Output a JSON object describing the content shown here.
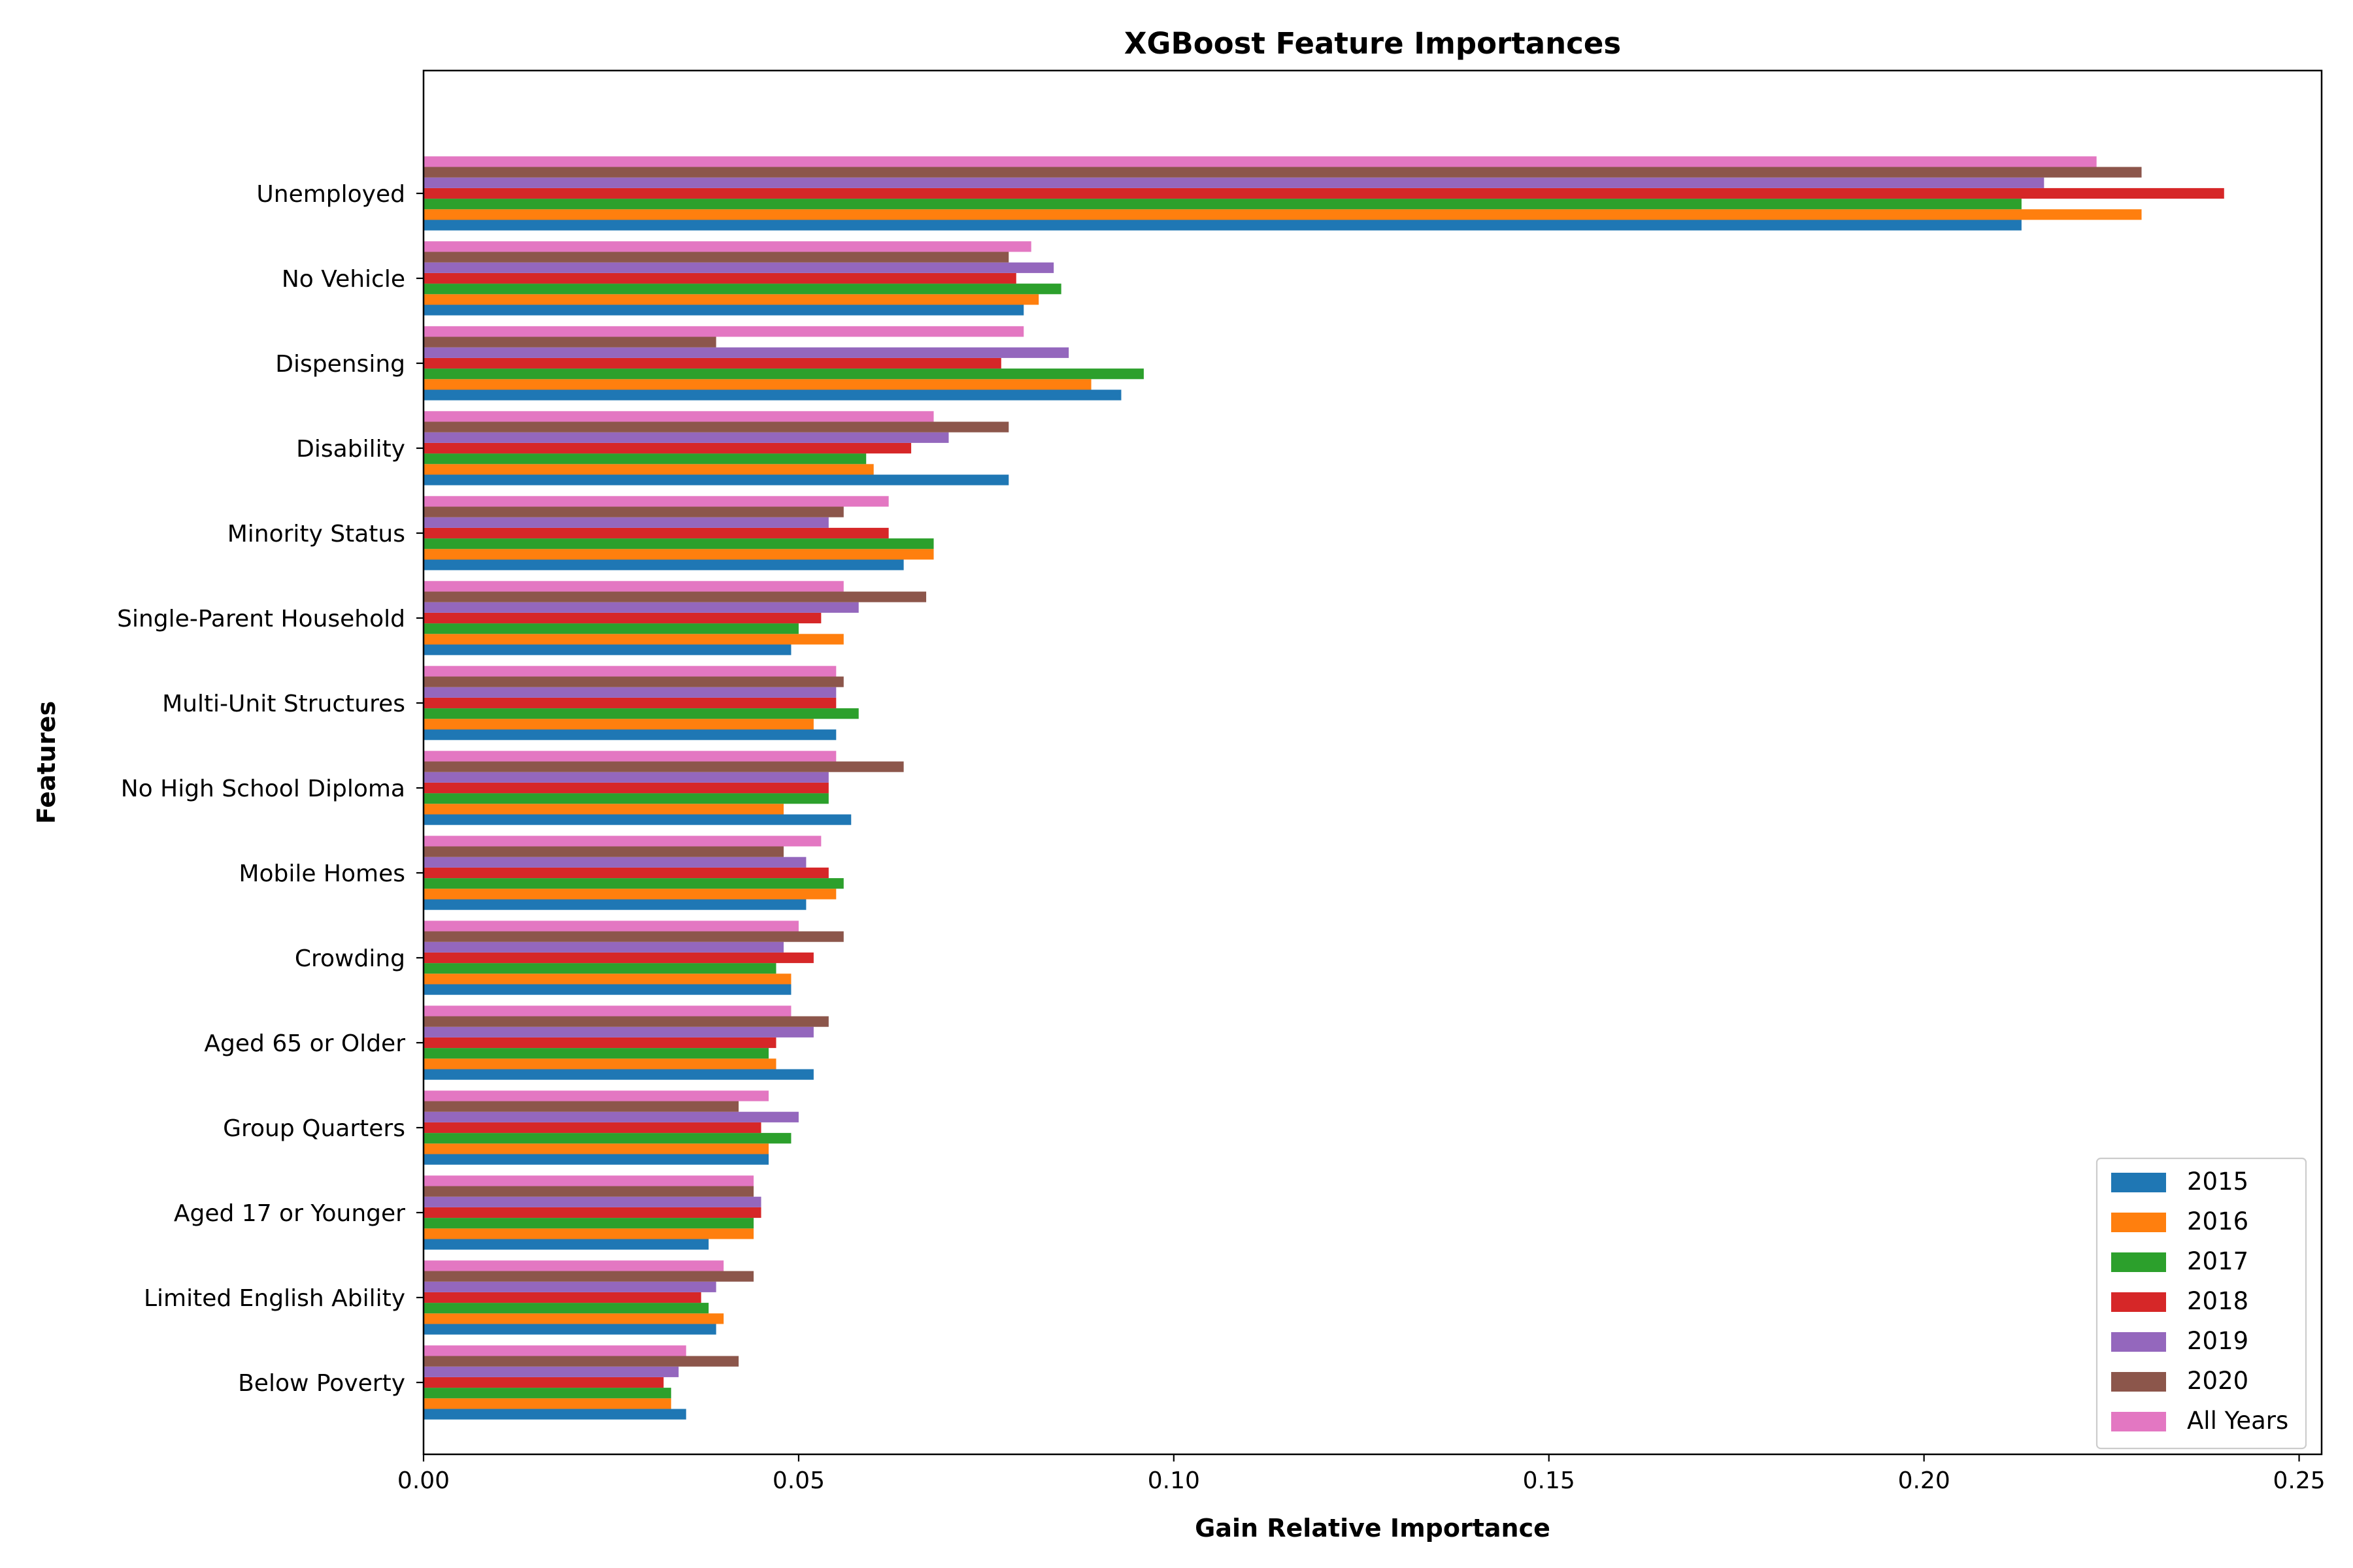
{
  "chart_data": {
    "type": "bar",
    "orientation": "horizontal",
    "title": "XGBoost Feature Importances",
    "xlabel": "Gain Relative Importance",
    "ylabel": "Features",
    "xlim": [
      0,
      0.253
    ],
    "xticks": [
      "0.00",
      "0.05",
      "0.10",
      "0.15",
      "0.20",
      "0.25"
    ],
    "grid": false,
    "legend_position": "lower-right",
    "categories": [
      "Unemployed",
      "No Vehicle",
      "Dispensing",
      "Disability",
      "Minority Status",
      "Single-Parent Household",
      "Multi-Unit Structures",
      "No High School Diploma",
      "Mobile Homes",
      "Crowding",
      "Aged 65 or Older",
      "Group Quarters",
      "Aged 17 or Younger",
      "Limited English Ability",
      "Below Poverty"
    ],
    "series": [
      {
        "name": "2015",
        "color": "#1f77b4",
        "values": [
          0.213,
          0.08,
          0.093,
          0.078,
          0.064,
          0.049,
          0.055,
          0.057,
          0.051,
          0.049,
          0.052,
          0.046,
          0.038,
          0.039,
          0.035
        ]
      },
      {
        "name": "2016",
        "color": "#ff7f0e",
        "values": [
          0.229,
          0.082,
          0.089,
          0.06,
          0.068,
          0.056,
          0.052,
          0.048,
          0.055,
          0.049,
          0.047,
          0.046,
          0.044,
          0.04,
          0.033
        ]
      },
      {
        "name": "2017",
        "color": "#2ca02c",
        "values": [
          0.213,
          0.085,
          0.096,
          0.059,
          0.068,
          0.05,
          0.058,
          0.054,
          0.056,
          0.047,
          0.046,
          0.049,
          0.044,
          0.038,
          0.033
        ]
      },
      {
        "name": "2018",
        "color": "#d62728",
        "values": [
          0.24,
          0.079,
          0.077,
          0.065,
          0.062,
          0.053,
          0.055,
          0.054,
          0.054,
          0.052,
          0.047,
          0.045,
          0.045,
          0.037,
          0.032
        ]
      },
      {
        "name": "2019",
        "color": "#9467bd",
        "values": [
          0.216,
          0.084,
          0.086,
          0.07,
          0.054,
          0.058,
          0.055,
          0.054,
          0.051,
          0.048,
          0.052,
          0.05,
          0.045,
          0.039,
          0.034
        ]
      },
      {
        "name": "2020",
        "color": "#8c564b",
        "values": [
          0.229,
          0.078,
          0.039,
          0.078,
          0.056,
          0.067,
          0.056,
          0.064,
          0.048,
          0.056,
          0.054,
          0.042,
          0.044,
          0.044,
          0.042
        ]
      },
      {
        "name": "All Years",
        "color": "#e377c2",
        "values": [
          0.223,
          0.081,
          0.08,
          0.068,
          0.062,
          0.056,
          0.055,
          0.055,
          0.053,
          0.05,
          0.049,
          0.046,
          0.044,
          0.04,
          0.035
        ]
      }
    ]
  }
}
